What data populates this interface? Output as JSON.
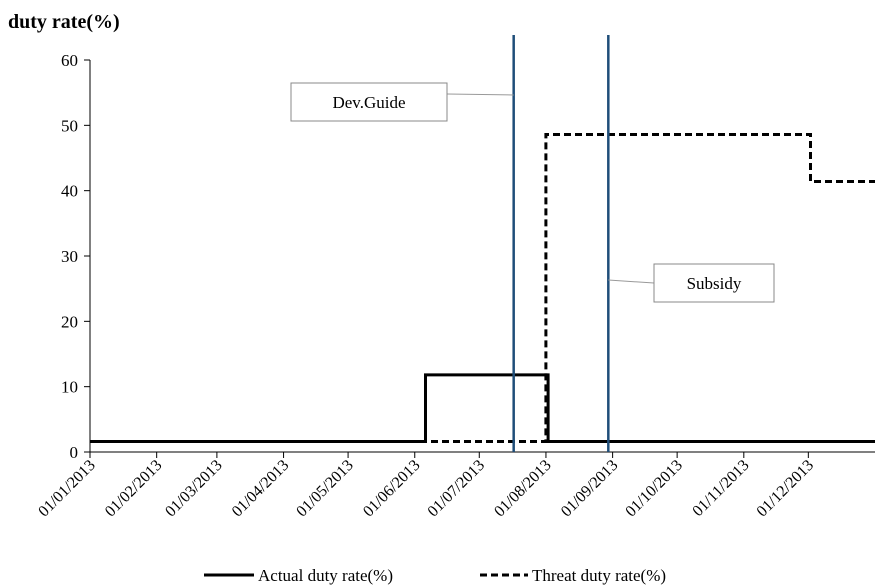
{
  "chart_data": {
    "type": "line",
    "ylabel": "duty rate(%)",
    "ylim": [
      0,
      60
    ],
    "yticks": [
      "0",
      "10",
      "20",
      "30",
      "40",
      "50",
      "60"
    ],
    "xlim": [
      "2013-01-01",
      "2014-01-01"
    ],
    "xticks": [
      "01/01/2013",
      "01/02/2013",
      "01/03/2013",
      "01/04/2013",
      "01/05/2013",
      "01/06/2013",
      "01/07/2013",
      "01/08/2013",
      "01/09/2013",
      "01/10/2013",
      "01/11/2013",
      "01/12/2013"
    ],
    "grid": false,
    "legend_position": "bottom",
    "series": [
      {
        "name": "Actual duty rate(%)",
        "style": "solid",
        "color": "#000000",
        "points": [
          [
            "2013-01-01",
            1.6
          ],
          [
            "2013-06-06",
            1.6
          ],
          [
            "2013-06-06",
            11.8
          ],
          [
            "2013-08-02",
            11.8
          ],
          [
            "2013-08-02",
            1.6
          ],
          [
            "2014-01-01",
            1.6
          ]
        ]
      },
      {
        "name": "Threat duty rate(%)",
        "style": "dashed",
        "color": "#000000",
        "points": [
          [
            "2013-01-01",
            1.6
          ],
          [
            "2013-08-01",
            1.6
          ],
          [
            "2013-08-01",
            48.6
          ],
          [
            "2013-12-02",
            48.6
          ],
          [
            "2013-12-02",
            41.4
          ],
          [
            "2014-01-01",
            41.4
          ]
        ]
      }
    ],
    "vlines": [
      {
        "x": "2013-07-17",
        "label": "Dev.Guide",
        "color": "#1f4e79"
      },
      {
        "x": "2013-08-30",
        "label": "Subsidy",
        "color": "#1f4e79"
      }
    ]
  }
}
